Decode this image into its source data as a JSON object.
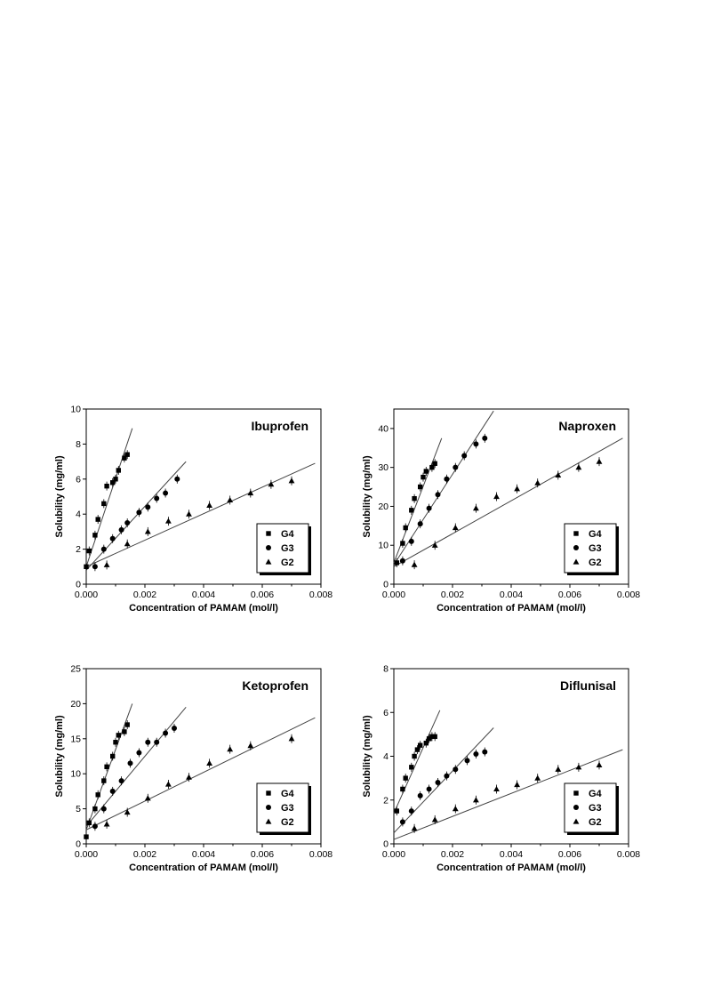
{
  "chart_data": [
    {
      "type": "scatter",
      "title": "Ibuprofen",
      "xlabel": "Concentration of PAMAM (mol/l)",
      "ylabel": "Solubility (mg/ml)",
      "xlim": [
        0,
        0.008
      ],
      "ylim": [
        0,
        10
      ],
      "xticks": [
        "0.000",
        "0.002",
        "0.004",
        "0.006",
        "0.008"
      ],
      "yticks": [
        "0",
        "2",
        "4",
        "6",
        "8",
        "10"
      ],
      "legend": "bottom-right",
      "series": [
        {
          "name": "G4",
          "marker": "square",
          "x": [
            0,
            0.0001,
            0.0003,
            0.0004,
            0.0006,
            0.0007,
            0.0009,
            0.001,
            0.0011,
            0.0013,
            0.0014
          ],
          "y": [
            1.0,
            1.9,
            2.8,
            3.7,
            4.6,
            5.6,
            5.8,
            6.0,
            6.5,
            7.2,
            7.4
          ],
          "fit": [
            [
              0,
              1.0
            ],
            [
              0.00157,
              8.9
            ]
          ]
        },
        {
          "name": "G3",
          "marker": "circle",
          "x": [
            0.0003,
            0.0006,
            0.0009,
            0.0012,
            0.0014,
            0.0018,
            0.0021,
            0.0024,
            0.0027,
            0.0031
          ],
          "y": [
            1.0,
            2.0,
            2.6,
            3.1,
            3.5,
            4.1,
            4.4,
            4.9,
            5.2,
            6.0
          ],
          "fit": [
            [
              0,
              0.8
            ],
            [
              0.0034,
              7.0
            ]
          ]
        },
        {
          "name": "G2",
          "marker": "triangle",
          "x": [
            0.0007,
            0.0014,
            0.0021,
            0.0028,
            0.0035,
            0.0042,
            0.0049,
            0.0056,
            0.0063,
            0.007
          ],
          "y": [
            1.1,
            2.3,
            3.0,
            3.6,
            4.0,
            4.5,
            4.8,
            5.2,
            5.7,
            5.9
          ],
          "fit": [
            [
              0,
              1.0
            ],
            [
              0.0078,
              6.9
            ]
          ]
        }
      ]
    },
    {
      "type": "scatter",
      "title": "Naproxen",
      "xlabel": "Concentration of PAMAM (mol/l)",
      "ylabel": "Solubility (mg/ml)",
      "xlim": [
        0,
        0.008
      ],
      "ylim": [
        0,
        45
      ],
      "xticks": [
        "0.000",
        "0.002",
        "0.004",
        "0.006",
        "0.008"
      ],
      "yticks": [
        "0",
        "10",
        "20",
        "30",
        "40"
      ],
      "legend": "bottom-right",
      "series": [
        {
          "name": "G4",
          "marker": "square",
          "x": [
            0.0001,
            0.0003,
            0.0004,
            0.0006,
            0.0007,
            0.0009,
            0.001,
            0.0011,
            0.0013,
            0.0014
          ],
          "y": [
            5.5,
            10.5,
            14.5,
            19.0,
            22.0,
            25.0,
            27.5,
            29.0,
            30.0,
            31.0
          ],
          "fit": [
            [
              0,
              5.5
            ],
            [
              0.00163,
              37.5
            ]
          ]
        },
        {
          "name": "G3",
          "marker": "circle",
          "x": [
            0.0003,
            0.0006,
            0.0009,
            0.0012,
            0.0015,
            0.0018,
            0.0021,
            0.0024,
            0.0028,
            0.0031
          ],
          "y": [
            6.0,
            11.0,
            15.5,
            19.5,
            23.0,
            27.0,
            30.0,
            33.0,
            36.0,
            37.5
          ],
          "fit": [
            [
              0,
              5.0
            ],
            [
              0.0034,
              44.5
            ]
          ]
        },
        {
          "name": "G2",
          "marker": "triangle",
          "x": [
            0.0007,
            0.0014,
            0.0021,
            0.0028,
            0.0035,
            0.0042,
            0.0049,
            0.0056,
            0.0063,
            0.007
          ],
          "y": [
            5.0,
            10.0,
            14.5,
            19.5,
            22.5,
            24.5,
            26.0,
            28.0,
            30.0,
            31.5
          ],
          "fit": [
            [
              0,
              4.5
            ],
            [
              0.0078,
              37.5
            ]
          ]
        }
      ]
    },
    {
      "type": "scatter",
      "title": "Ketoprofen",
      "xlabel": "Concentration of PAMAM (mol/l)",
      "ylabel": "Solubility (mg/ml)",
      "xlim": [
        0,
        0.008
      ],
      "ylim": [
        0,
        25
      ],
      "xticks": [
        "0.000",
        "0.002",
        "0.004",
        "0.006",
        "0.008"
      ],
      "yticks": [
        "0",
        "5",
        "10",
        "15",
        "20",
        "25"
      ],
      "legend": "bottom-right",
      "series": [
        {
          "name": "G4",
          "marker": "square",
          "x": [
            0,
            0.0001,
            0.0003,
            0.0004,
            0.0006,
            0.0007,
            0.0009,
            0.001,
            0.0011,
            0.0013,
            0.0014
          ],
          "y": [
            1.0,
            3.0,
            5.0,
            7.0,
            9.0,
            11.0,
            12.5,
            14.5,
            15.5,
            16.0,
            17.0
          ],
          "fit": [
            [
              0,
              2.0
            ],
            [
              0.00157,
              20.0
            ]
          ]
        },
        {
          "name": "G3",
          "marker": "circle",
          "x": [
            0.0003,
            0.0006,
            0.0009,
            0.0012,
            0.0015,
            0.0018,
            0.0021,
            0.0024,
            0.0027,
            0.003
          ],
          "y": [
            2.5,
            5.0,
            7.5,
            9.0,
            11.5,
            13.0,
            14.5,
            14.5,
            15.8,
            16.5
          ],
          "fit": [
            [
              0,
              2.5
            ],
            [
              0.0034,
              19.5
            ]
          ]
        },
        {
          "name": "G2",
          "marker": "triangle",
          "x": [
            0.0007,
            0.0014,
            0.0021,
            0.0028,
            0.0035,
            0.0042,
            0.0049,
            0.0056,
            0.007
          ],
          "y": [
            2.8,
            4.5,
            6.5,
            8.5,
            9.5,
            11.5,
            13.5,
            14.0,
            15.0
          ],
          "fit": [
            [
              0,
              2.0
            ],
            [
              0.0078,
              18.0
            ]
          ]
        }
      ]
    },
    {
      "type": "scatter",
      "title": "Diflunisal",
      "xlabel": "Concentration of PAMAM (mol/l)",
      "ylabel": "Solubility (mg/ml)",
      "xlim": [
        0,
        0.008
      ],
      "ylim": [
        0,
        8
      ],
      "xticks": [
        "0.000",
        "0.002",
        "0.004",
        "0.006",
        "0.008"
      ],
      "yticks": [
        "0",
        "2",
        "4",
        "6",
        "8"
      ],
      "legend": "bottom-right",
      "series": [
        {
          "name": "G4",
          "marker": "square",
          "x": [
            0.0001,
            0.0003,
            0.0004,
            0.0006,
            0.0007,
            0.0008,
            0.0009,
            0.0011,
            0.0012,
            0.0013,
            0.0014
          ],
          "y": [
            1.5,
            2.5,
            3.0,
            3.5,
            4.0,
            4.3,
            4.5,
            4.6,
            4.8,
            4.9,
            4.9
          ],
          "fit": [
            [
              0,
              1.4
            ],
            [
              0.00157,
              6.1
            ]
          ]
        },
        {
          "name": "G3",
          "marker": "circle",
          "x": [
            0.0003,
            0.0006,
            0.0009,
            0.0012,
            0.0015,
            0.0018,
            0.0021,
            0.0025,
            0.0028,
            0.0031
          ],
          "y": [
            1.0,
            1.5,
            2.2,
            2.5,
            2.8,
            3.1,
            3.4,
            3.8,
            4.1,
            4.2
          ],
          "fit": [
            [
              0,
              0.5
            ],
            [
              0.0034,
              5.3
            ]
          ]
        },
        {
          "name": "G2",
          "marker": "triangle",
          "x": [
            0.0007,
            0.0014,
            0.0021,
            0.0028,
            0.0035,
            0.0042,
            0.0049,
            0.0056,
            0.0063,
            0.007
          ],
          "y": [
            0.7,
            1.1,
            1.6,
            2.0,
            2.5,
            2.7,
            3.0,
            3.4,
            3.5,
            3.6
          ],
          "fit": [
            [
              0,
              0.2
            ],
            [
              0.0078,
              4.3
            ]
          ]
        }
      ]
    }
  ]
}
